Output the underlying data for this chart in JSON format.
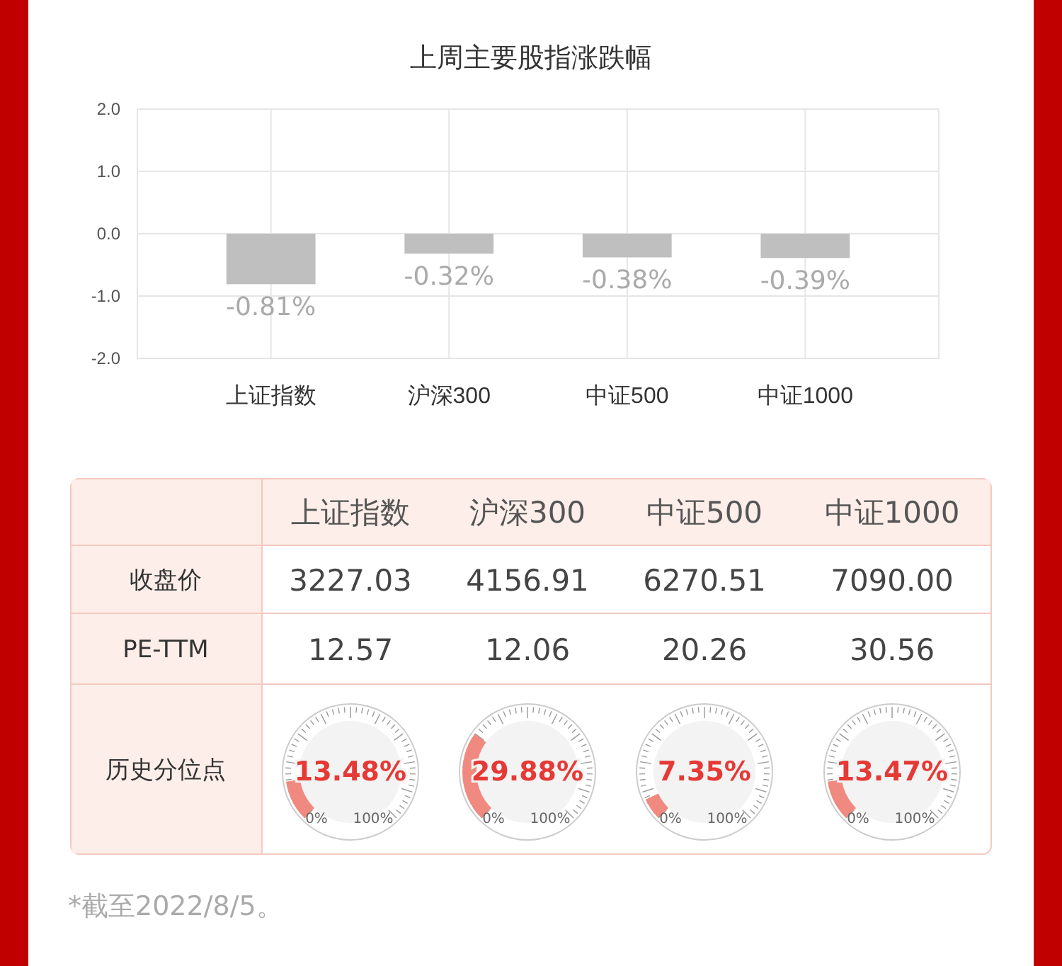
{
  "chart_data": [
    {
      "type": "bar",
      "title": "上周主要股指涨跌幅",
      "categories": [
        "上证指数",
        "沪深300",
        "中证500",
        "中证1000"
      ],
      "values": [
        -0.81,
        -0.32,
        -0.38,
        -0.39
      ],
      "value_labels": [
        "-0.81%",
        "-0.32%",
        "-0.38%",
        "-0.39%"
      ],
      "color": "#bfbfbf",
      "ylim": [
        -2,
        2
      ],
      "yticks": [
        {
          "value": -2,
          "label": "-2.0"
        },
        {
          "value": -1,
          "label": "-1.0"
        },
        {
          "value": 0,
          "label": "0.0"
        },
        {
          "value": 1,
          "label": "1.0"
        },
        {
          "value": 2,
          "label": "2.0"
        }
      ],
      "grid": true
    },
    {
      "type": "other",
      "categories": [
        "上证指数",
        "沪深300",
        "中证500",
        "中证1000"
      ],
      "y_categories": [
        "收盘价",
        "PE-TTM",
        "历史分位点"
      ],
      "cell_labels": [
        [
          "3227.03",
          "4156.91",
          "6270.51",
          "7090.00"
        ],
        [
          "12.57",
          "12.06",
          "20.26",
          "30.56"
        ],
        [
          "13.48%",
          "29.88%",
          "7.35%",
          "13.47%"
        ]
      ],
      "annotations": [
        "0%",
        "100%",
        "*截至2022/8/5。"
      ]
    }
  ]
}
